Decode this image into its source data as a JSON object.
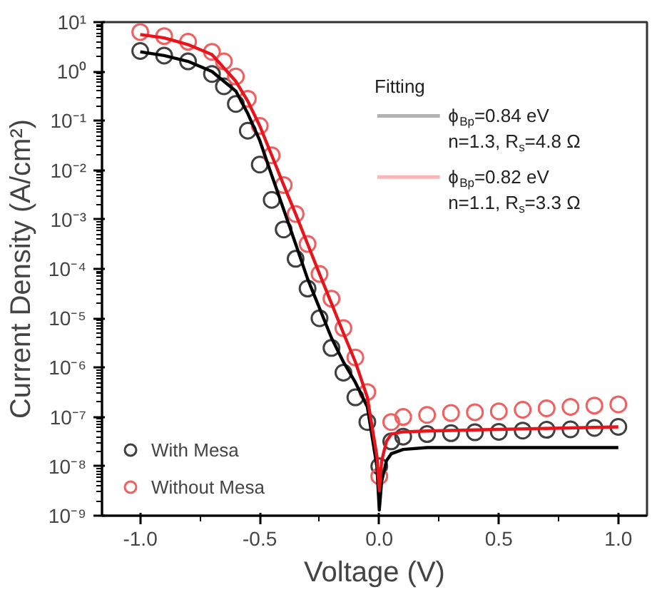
{
  "chart_data": {
    "type": "scatter",
    "xlabel": "Voltage (V)",
    "ylabel": "Current Density (A/cm²)",
    "log": "y",
    "legend": "bottom left",
    "legend_title": "Fitting",
    "grid": false,
    "xlim": [
      -1.16,
      1.12
    ],
    "ylim": [
      1e-09,
      10
    ],
    "xticks": [
      {
        "value": -1.0,
        "label": "-1.0"
      },
      {
        "value": -0.5,
        "label": "-0.5"
      },
      {
        "value": 0.0,
        "label": "0.0"
      },
      {
        "value": 0.5,
        "label": "0.5"
      },
      {
        "value": 1.0,
        "label": "1.0"
      }
    ],
    "yticks": [
      {
        "value": 1e-09,
        "label": "10⁻⁹"
      },
      {
        "value": 1e-08,
        "label": "10⁻⁸"
      },
      {
        "value": 1e-07,
        "label": "10⁻⁷"
      },
      {
        "value": 1e-06,
        "label": "10⁻⁶"
      },
      {
        "value": 1e-05,
        "label": "10⁻⁵"
      },
      {
        "value": 0.0001,
        "label": "10⁻⁴"
      },
      {
        "value": 0.001,
        "label": "10⁻³"
      },
      {
        "value": 0.01,
        "label": "10⁻²"
      },
      {
        "value": 0.1,
        "label": "10⁻¹"
      },
      {
        "value": 1,
        "label": "10⁰"
      },
      {
        "value": 10,
        "label": "10¹"
      }
    ],
    "series": [
      {
        "name": "With Mesa",
        "marker": "circle",
        "color": "#404040",
        "x": [
          -1,
          -0.9,
          -0.8,
          -0.7,
          -0.65,
          -0.6,
          -0.55,
          -0.5,
          -0.45,
          -0.4,
          -0.35,
          -0.3,
          -0.25,
          -0.2,
          -0.15,
          -0.1,
          -0.05,
          0,
          0.05,
          0.1,
          0.2,
          0.3,
          0.4,
          0.5,
          0.6,
          0.7,
          0.8,
          0.9,
          1.0
        ],
        "values": [
          2.6,
          2.1,
          1.6,
          0.89,
          0.5,
          0.22,
          0.063,
          0.013,
          0.0025,
          0.00063,
          0.00016,
          4e-05,
          1e-05,
          2.5e-06,
          7.9e-07,
          2.5e-07,
          7.9e-08,
          1e-08,
          3.2e-08,
          4e-08,
          4.5e-08,
          4.7e-08,
          4.9e-08,
          5e-08,
          5.3e-08,
          5.5e-08,
          5.6e-08,
          6e-08,
          6.3e-08
        ]
      },
      {
        "name": "Without Mesa",
        "marker": "circle",
        "color": "#f06060",
        "x": [
          -1,
          -0.9,
          -0.8,
          -0.7,
          -0.65,
          -0.6,
          -0.55,
          -0.5,
          -0.45,
          -0.4,
          -0.35,
          -0.3,
          -0.25,
          -0.2,
          -0.15,
          -0.1,
          -0.05,
          0,
          0.05,
          0.1,
          0.2,
          0.3,
          0.4,
          0.5,
          0.6,
          0.7,
          0.8,
          0.9,
          1.0
        ],
        "values": [
          6.3,
          5.2,
          4,
          2.5,
          1.6,
          0.79,
          0.28,
          0.079,
          0.02,
          0.005,
          0.0013,
          0.00032,
          7.9e-05,
          2.5e-05,
          6.3e-06,
          1.6e-06,
          3.2e-07,
          6.3e-09,
          7.9e-08,
          1e-07,
          1.1e-07,
          1.2e-07,
          1.25e-07,
          1.3e-07,
          1.4e-07,
          1.5e-07,
          1.6e-07,
          1.7e-07,
          1.8e-07
        ]
      },
      {
        "name": "ϕ$_{Bp}$=0.84 eV\nn=1.3, R$_{s}$=4.8 Ω",
        "type": "line",
        "color": "#000000",
        "x": [
          -1,
          -0.9,
          -0.8,
          -0.7,
          -0.6,
          -0.55,
          -0.5,
          -0.45,
          -0.4,
          -0.35,
          -0.3,
          -0.25,
          -0.2,
          -0.15,
          -0.1,
          -0.05,
          -0.01,
          0,
          0.01,
          0.03,
          0.05,
          0.1,
          0.2,
          0.5,
          1.0
        ],
        "values": [
          2.5,
          2.1,
          1.6,
          1,
          0.4,
          0.14,
          0.04,
          0.0079,
          0.0016,
          0.00032,
          6.3e-05,
          1.6e-05,
          4e-06,
          1.3e-06,
          5e-07,
          1.6e-07,
          1e-08,
          1.3e-09,
          5e-09,
          1.3e-08,
          1.8e-08,
          2.2e-08,
          2.4e-08,
          2.4e-08,
          2.4e-08
        ]
      },
      {
        "name": "ϕ$_{Bp}$=0.82 eV\nn=1.1, R$_{s}$=3.3 Ω",
        "type": "line",
        "color": "#e8141c",
        "x": [
          -1,
          -0.9,
          -0.8,
          -0.7,
          -0.6,
          -0.55,
          -0.5,
          -0.45,
          -0.4,
          -0.35,
          -0.3,
          -0.25,
          -0.2,
          -0.15,
          -0.1,
          -0.05,
          -0.01,
          0,
          0.01,
          0.03,
          0.05,
          0.1,
          0.2,
          0.5,
          1.0
        ],
        "values": [
          5.6,
          4.8,
          3.5,
          2.2,
          0.63,
          0.25,
          0.079,
          0.02,
          0.005,
          0.0013,
          0.00032,
          7.9e-05,
          2e-05,
          5e-06,
          1.3e-06,
          2.5e-07,
          1.6e-08,
          3.2e-09,
          1.3e-08,
          3.2e-08,
          4.5e-08,
          5e-08,
          5.2e-08,
          5.6e-08,
          6.3e-08
        ]
      }
    ]
  }
}
